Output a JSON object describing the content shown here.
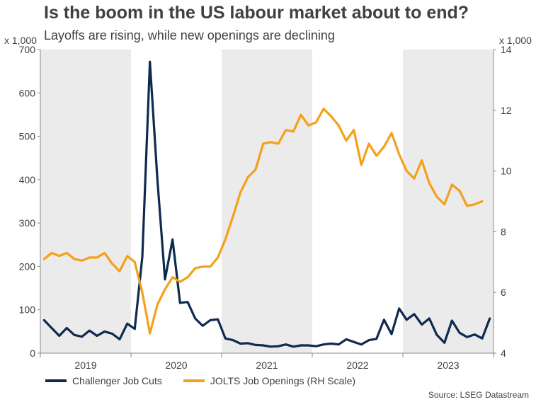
{
  "title": "Is the boom in the US labour market about to end?",
  "subtitle": "Layoffs are rising, while new openings are declining",
  "left_unit": "x 1,000",
  "right_unit": "x 1,000",
  "source": "Source: LSEG Datastream",
  "colors": {
    "challenger": "#0f2a4f",
    "jolts": "#f4a01a",
    "shade": "#ebebeb",
    "axis": "#888888"
  },
  "legend": {
    "challenger": "Challenger Job Cuts",
    "jolts": "JOLTS Job Openings (RH Scale)"
  },
  "chart_data": {
    "type": "line",
    "x_labels": [
      "2019",
      "2020",
      "2021",
      "2022",
      "2023"
    ],
    "shaded_years": [
      "2019",
      "2021",
      "2023"
    ],
    "y_left": {
      "min": 0,
      "max": 700,
      "ticks": [
        0,
        100,
        200,
        300,
        400,
        500,
        600,
        700
      ]
    },
    "y_right": {
      "min": 4,
      "max": 14,
      "ticks": [
        4,
        6,
        8,
        10,
        12,
        14
      ]
    },
    "x_range": [
      "2019-01",
      "2023-12"
    ],
    "series": [
      {
        "name": "Challenger Job Cuts",
        "axis": "left",
        "x": [
          "2019-01",
          "2019-02",
          "2019-03",
          "2019-04",
          "2019-05",
          "2019-06",
          "2019-07",
          "2019-08",
          "2019-09",
          "2019-10",
          "2019-11",
          "2019-12",
          "2020-01",
          "2020-02",
          "2020-03",
          "2020-04",
          "2020-05",
          "2020-06",
          "2020-07",
          "2020-08",
          "2020-09",
          "2020-10",
          "2020-11",
          "2020-12",
          "2021-01",
          "2021-02",
          "2021-03",
          "2021-04",
          "2021-05",
          "2021-06",
          "2021-07",
          "2021-08",
          "2021-09",
          "2021-10",
          "2021-11",
          "2021-12",
          "2022-01",
          "2022-02",
          "2022-03",
          "2022-04",
          "2022-05",
          "2022-06",
          "2022-07",
          "2022-08",
          "2022-09",
          "2022-10",
          "2022-11",
          "2022-12",
          "2023-01",
          "2023-02",
          "2023-03",
          "2023-04",
          "2023-05",
          "2023-06",
          "2023-07",
          "2023-08",
          "2023-09",
          "2023-10",
          "2023-11",
          "2023-12"
        ],
        "values": [
          76,
          58,
          40,
          58,
          42,
          38,
          52,
          40,
          50,
          45,
          32,
          68,
          56,
          222,
          672,
          400,
          170,
          262,
          116,
          118,
          80,
          63,
          76,
          78,
          34,
          30,
          22,
          23,
          19,
          18,
          15,
          16,
          20,
          15,
          18,
          18,
          16,
          20,
          22,
          20,
          32,
          26,
          20,
          30,
          33,
          77,
          44,
          103,
          77,
          90,
          66,
          80,
          42,
          24,
          75,
          47,
          37,
          43,
          34,
          80
        ]
      },
      {
        "name": "JOLTS Job Openings (RH Scale)",
        "axis": "right",
        "x": [
          "2019-01",
          "2019-02",
          "2019-03",
          "2019-04",
          "2019-05",
          "2019-06",
          "2019-07",
          "2019-08",
          "2019-09",
          "2019-10",
          "2019-11",
          "2019-12",
          "2020-01",
          "2020-02",
          "2020-03",
          "2020-04",
          "2020-05",
          "2020-06",
          "2020-07",
          "2020-08",
          "2020-09",
          "2020-10",
          "2020-11",
          "2020-12",
          "2021-01",
          "2021-02",
          "2021-03",
          "2021-04",
          "2021-05",
          "2021-06",
          "2021-07",
          "2021-08",
          "2021-09",
          "2021-10",
          "2021-11",
          "2021-12",
          "2022-01",
          "2022-02",
          "2022-03",
          "2022-04",
          "2022-05",
          "2022-06",
          "2022-07",
          "2022-08",
          "2022-09",
          "2022-10",
          "2022-11",
          "2022-12",
          "2023-01",
          "2023-02",
          "2023-03",
          "2023-04",
          "2023-05",
          "2023-06",
          "2023-07",
          "2023-08",
          "2023-09",
          "2023-10",
          "2023-11"
        ],
        "values": [
          7.1,
          7.3,
          7.2,
          7.3,
          7.1,
          7.05,
          7.15,
          7.15,
          7.3,
          6.95,
          6.7,
          7.2,
          7.0,
          6.0,
          4.65,
          5.6,
          6.1,
          6.5,
          6.35,
          6.5,
          6.8,
          6.85,
          6.85,
          7.15,
          7.75,
          8.5,
          9.3,
          9.8,
          10.05,
          10.9,
          10.95,
          10.9,
          11.35,
          11.3,
          11.85,
          11.5,
          11.6,
          12.05,
          11.8,
          11.5,
          11.0,
          11.35,
          10.2,
          10.9,
          10.5,
          10.8,
          11.25,
          10.55,
          10.0,
          9.75,
          10.35,
          9.6,
          9.15,
          8.9,
          9.55,
          9.35,
          8.85,
          8.9,
          9.0
        ]
      }
    ],
    "grid": false,
    "legend_position": "bottom-left"
  }
}
